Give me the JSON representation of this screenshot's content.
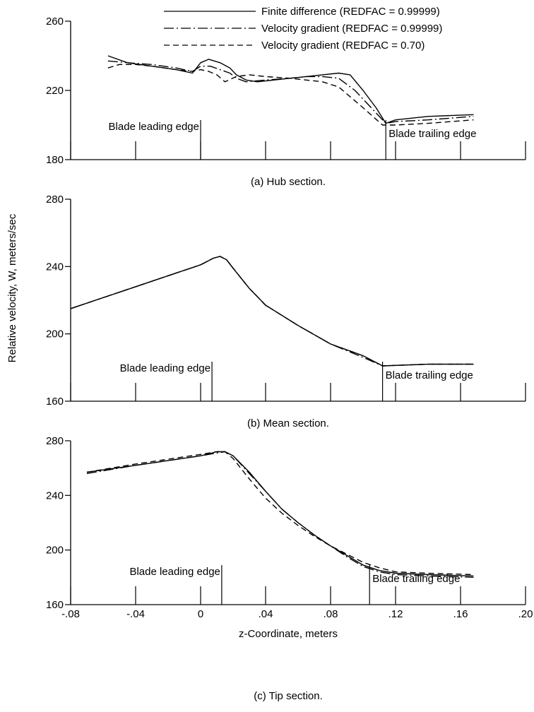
{
  "legend": [
    {
      "label": "Finite difference (REDFAC = 0.99999)",
      "dash": "solid"
    },
    {
      "label": "Velocity gradient (REDFAC = 0.99999)",
      "dash": "dashdot"
    },
    {
      "label": "Velocity gradient (REDFAC = 0.70)",
      "dash": "dashed"
    }
  ],
  "y_axis_label": "Relative velocity, W, meters/sec",
  "x_axis_label": "z-Coordinate, meters",
  "x_tick_labels": [
    "-.08",
    "-.04",
    "0",
    ".04",
    ".08",
    ".12",
    ".16",
    ".20"
  ],
  "annotations": {
    "leading": "Blade leading edge",
    "trailing": "Blade trailing edge"
  },
  "chart_data": [
    {
      "type": "line",
      "caption": "(a) Hub section.",
      "xlim": [
        -0.08,
        0.2
      ],
      "ylim": [
        180,
        260
      ],
      "yticks": [
        180,
        220,
        260
      ],
      "leading_edge_z": 0.0,
      "trailing_edge_z": 0.114,
      "series": [
        {
          "name": "Finite difference (REDFAC = 0.99999)",
          "dash": "solid",
          "points": [
            [
              -0.057,
              240
            ],
            [
              -0.045,
              236
            ],
            [
              -0.03,
              234
            ],
            [
              -0.015,
              232
            ],
            [
              -0.005,
              230
            ],
            [
              0.0,
              236
            ],
            [
              0.005,
              238
            ],
            [
              0.012,
              236
            ],
            [
              0.018,
              233
            ],
            [
              0.022,
              229
            ],
            [
              0.028,
              226
            ],
            [
              0.035,
              225
            ],
            [
              0.045,
              226
            ],
            [
              0.055,
              227
            ],
            [
              0.065,
              228
            ],
            [
              0.075,
              229
            ],
            [
              0.085,
              230
            ],
            [
              0.092,
              229
            ],
            [
              0.1,
              220
            ],
            [
              0.108,
              210
            ],
            [
              0.114,
              201
            ],
            [
              0.12,
              203
            ],
            [
              0.14,
              205
            ],
            [
              0.168,
              206
            ]
          ]
        },
        {
          "name": "Velocity gradient (REDFAC = 0.99999)",
          "dash": "dashdot",
          "points": [
            [
              -0.057,
              237
            ],
            [
              -0.045,
              236
            ],
            [
              -0.03,
              235
            ],
            [
              -0.015,
              233
            ],
            [
              -0.005,
              231
            ],
            [
              0.0,
              234
            ],
            [
              0.006,
              234
            ],
            [
              0.012,
              232
            ],
            [
              0.018,
              230
            ],
            [
              0.022,
              227
            ],
            [
              0.028,
              225
            ],
            [
              0.04,
              226
            ],
            [
              0.055,
              227
            ],
            [
              0.065,
              228
            ],
            [
              0.075,
              228
            ],
            [
              0.085,
              227
            ],
            [
              0.095,
              220
            ],
            [
              0.105,
              210
            ],
            [
              0.114,
              201
            ],
            [
              0.12,
              202
            ],
            [
              0.14,
              203
            ],
            [
              0.168,
              205
            ]
          ]
        },
        {
          "name": "Velocity gradient (REDFAC = 0.70)",
          "dash": "dashed",
          "points": [
            [
              -0.057,
              233
            ],
            [
              -0.05,
              235
            ],
            [
              -0.04,
              235
            ],
            [
              -0.03,
              234
            ],
            [
              -0.015,
              232
            ],
            [
              -0.005,
              231
            ],
            [
              0.0,
              232
            ],
            [
              0.005,
              231
            ],
            [
              0.01,
              229
            ],
            [
              0.015,
              225
            ],
            [
              0.022,
              228
            ],
            [
              0.03,
              229
            ],
            [
              0.04,
              228
            ],
            [
              0.055,
              227
            ],
            [
              0.065,
              226
            ],
            [
              0.075,
              225
            ],
            [
              0.085,
              222
            ],
            [
              0.1,
              210
            ],
            [
              0.112,
              200
            ],
            [
              0.12,
              200
            ],
            [
              0.14,
              201
            ],
            [
              0.168,
              203
            ]
          ]
        }
      ]
    },
    {
      "type": "line",
      "caption": "(b) Mean section.",
      "xlim": [
        -0.08,
        0.2
      ],
      "ylim": [
        160,
        280
      ],
      "yticks": [
        160,
        200,
        240,
        280
      ],
      "leading_edge_z": 0.007,
      "trailing_edge_z": 0.112,
      "series": [
        {
          "name": "Finite difference (REDFAC = 0.99999)",
          "dash": "solid",
          "points": [
            [
              -0.08,
              215
            ],
            [
              -0.04,
              228
            ],
            [
              0.0,
              241
            ],
            [
              0.008,
              245
            ],
            [
              0.012,
              246
            ],
            [
              0.016,
              244
            ],
            [
              0.02,
              239
            ],
            [
              0.03,
              227
            ],
            [
              0.04,
              217
            ],
            [
              0.06,
              205
            ],
            [
              0.08,
              194
            ],
            [
              0.1,
              187
            ],
            [
              0.112,
              181
            ],
            [
              0.14,
              182
            ],
            [
              0.168,
              182
            ]
          ]
        },
        {
          "name": "Velocity gradient (REDFAC = 0.99999)",
          "dash": "dashdot",
          "points": [
            [
              -0.08,
              215
            ],
            [
              -0.04,
              228
            ],
            [
              0.0,
              241
            ],
            [
              0.008,
              245
            ],
            [
              0.012,
              246
            ],
            [
              0.016,
              244
            ],
            [
              0.02,
              239
            ],
            [
              0.03,
              227
            ],
            [
              0.04,
              217
            ],
            [
              0.06,
              205
            ],
            [
              0.08,
              194
            ],
            [
              0.1,
              186
            ],
            [
              0.112,
              181
            ],
            [
              0.14,
              182
            ],
            [
              0.168,
              182
            ]
          ]
        },
        {
          "name": "Velocity gradient (REDFAC = 0.70)",
          "dash": "dashed",
          "points": [
            [
              -0.08,
              215
            ],
            [
              -0.04,
              228
            ],
            [
              0.0,
              241
            ],
            [
              0.008,
              245
            ],
            [
              0.012,
              246
            ],
            [
              0.016,
              244
            ],
            [
              0.02,
              239
            ],
            [
              0.03,
              227
            ],
            [
              0.04,
              217
            ],
            [
              0.06,
              205
            ],
            [
              0.08,
              194
            ],
            [
              0.1,
              187
            ],
            [
              0.112,
              181
            ],
            [
              0.14,
              182
            ],
            [
              0.168,
              182
            ]
          ]
        }
      ]
    },
    {
      "type": "line",
      "caption": "(c) Tip section.",
      "xlim": [
        -0.08,
        0.2
      ],
      "ylim": [
        160,
        280
      ],
      "yticks": [
        160,
        200,
        240,
        280
      ],
      "leading_edge_z": 0.013,
      "trailing_edge_z": 0.104,
      "series": [
        {
          "name": "Finite difference (REDFAC = 0.99999)",
          "dash": "solid",
          "points": [
            [
              -0.07,
              257
            ],
            [
              -0.04,
              262
            ],
            [
              0.0,
              269
            ],
            [
              0.01,
              272
            ],
            [
              0.015,
              272
            ],
            [
              0.02,
              269
            ],
            [
              0.03,
              257
            ],
            [
              0.04,
              243
            ],
            [
              0.05,
              230
            ],
            [
              0.06,
              220
            ],
            [
              0.07,
              211
            ],
            [
              0.08,
              203
            ],
            [
              0.09,
              196
            ],
            [
              0.1,
              189
            ],
            [
              0.11,
              185
            ],
            [
              0.12,
              183
            ],
            [
              0.14,
              182
            ],
            [
              0.168,
              181
            ]
          ]
        },
        {
          "name": "Velocity gradient (REDFAC = 0.99999)",
          "dash": "dashdot",
          "points": [
            [
              -0.07,
              256
            ],
            [
              -0.04,
              262
            ],
            [
              0.0,
              269
            ],
            [
              0.01,
              271
            ],
            [
              0.015,
              272
            ],
            [
              0.02,
              269
            ],
            [
              0.03,
              256
            ],
            [
              0.04,
              243
            ],
            [
              0.05,
              230
            ],
            [
              0.06,
              220
            ],
            [
              0.07,
              211
            ],
            [
              0.08,
              203
            ],
            [
              0.09,
              195
            ],
            [
              0.1,
              188
            ],
            [
              0.11,
              184
            ],
            [
              0.12,
              182
            ],
            [
              0.14,
              181
            ],
            [
              0.168,
              180
            ]
          ]
        },
        {
          "name": "Velocity gradient (REDFAC = 0.70)",
          "dash": "dashed",
          "points": [
            [
              -0.07,
              257
            ],
            [
              -0.04,
              263
            ],
            [
              0.0,
              270
            ],
            [
              0.01,
              272
            ],
            [
              0.015,
              272
            ],
            [
              0.02,
              267
            ],
            [
              0.03,
              252
            ],
            [
              0.04,
              238
            ],
            [
              0.05,
              227
            ],
            [
              0.06,
              218
            ],
            [
              0.07,
              210
            ],
            [
              0.08,
              203
            ],
            [
              0.09,
              197
            ],
            [
              0.1,
              191
            ],
            [
              0.11,
              187
            ],
            [
              0.12,
              184
            ],
            [
              0.14,
              183
            ],
            [
              0.168,
              182
            ]
          ]
        }
      ]
    }
  ]
}
